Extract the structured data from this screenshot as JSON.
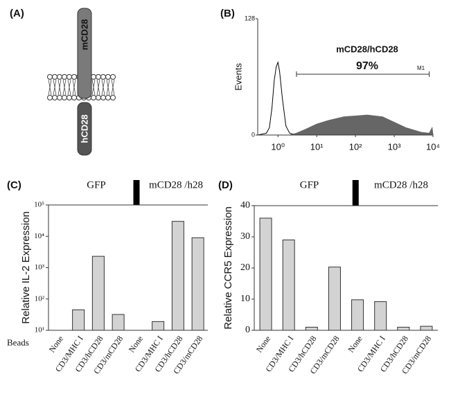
{
  "diagram": {
    "label": "(A)",
    "nodes": [
      {
        "label": "mCD28"
      },
      {
        "label": "hCD28"
      }
    ]
  },
  "chart_data": [
    {
      "type": "area",
      "panel_label": "(B)",
      "y_label": "Events",
      "xscale": "log",
      "xlim": [
        0.3,
        10000
      ],
      "ylim": [
        0,
        128
      ],
      "yticks": [
        0,
        128
      ],
      "xticks": [
        {
          "value": 1,
          "label": "10⁰"
        },
        {
          "value": 10,
          "label": "10¹"
        },
        {
          "value": 100,
          "label": "10²"
        },
        {
          "value": 1000,
          "label": "10³"
        },
        {
          "value": 10000,
          "label": "10⁴"
        }
      ],
      "annotation": "mCD28/hCD28",
      "percent": "97%",
      "gate": {
        "label": "M1",
        "range": [
          3,
          8000
        ],
        "level": 67
      },
      "x": [
        0.3,
        0.5,
        0.6,
        0.7,
        0.8,
        0.9,
        1,
        1.1,
        1.3,
        1.6,
        2,
        3,
        5,
        10,
        20,
        50,
        100,
        200,
        500,
        1000,
        2000,
        5000,
        8000,
        9500,
        10000
      ],
      "series": [
        {
          "color": "#000000",
          "filled": false,
          "values": [
            0,
            2,
            8,
            30,
            60,
            75,
            80,
            70,
            40,
            10,
            2,
            0,
            0,
            0,
            0,
            0,
            0,
            0,
            0,
            0,
            0,
            0,
            0,
            0,
            0
          ]
        },
        {
          "color": "#666666",
          "filled": true,
          "values": [
            0,
            0,
            0,
            0,
            0,
            0,
            0,
            0,
            0,
            0,
            0,
            2,
            6,
            12,
            16,
            20,
            21,
            22,
            20,
            14,
            8,
            3,
            2,
            8,
            0
          ]
        }
      ]
    },
    {
      "type": "bar",
      "panel_label": "(C)",
      "y_label": "Relative IL-2 Expression",
      "x_label": "Beads",
      "group_labels": [
        "GFP",
        "mCD28 /h28"
      ],
      "yscale": "log",
      "ylim": [
        10,
        100000
      ],
      "yticks": [
        {
          "value": 10,
          "label": "10¹"
        },
        {
          "value": 100,
          "label": "10²"
        },
        {
          "value": 1000,
          "label": "10³"
        },
        {
          "value": 10000,
          "label": "10⁴"
        },
        {
          "value": 100000,
          "label": "10⁵"
        }
      ],
      "categories": [
        "None",
        "CD3/MHC I",
        "CD3/hCD28",
        "CD3/mCD28",
        "None",
        "CD3/MHC I",
        "CD3/hCD28",
        "CD3/mCD28"
      ],
      "values": [
        null,
        45,
        2300,
        32,
        null,
        19,
        30000,
        9000
      ],
      "color": "#d3d3d3"
    },
    {
      "type": "bar",
      "panel_label": "(D)",
      "y_label": "Relative CCR5 Expression",
      "group_labels": [
        "GFP",
        "mCD28 /h28"
      ],
      "yscale": "linear",
      "ylim": [
        0,
        40
      ],
      "yticks": [
        0,
        10,
        20,
        30,
        40
      ],
      "categories": [
        "None",
        "CD3/MHC I",
        "CD3/hCD28",
        "CD3/mCD28",
        "None",
        "CD3/MHC I",
        "CD3/hCD28",
        "CD3/mCD28"
      ],
      "values": [
        36,
        29,
        1,
        20.3,
        9.8,
        9.2,
        1,
        1.3
      ],
      "color": "#d3d3d3"
    }
  ]
}
